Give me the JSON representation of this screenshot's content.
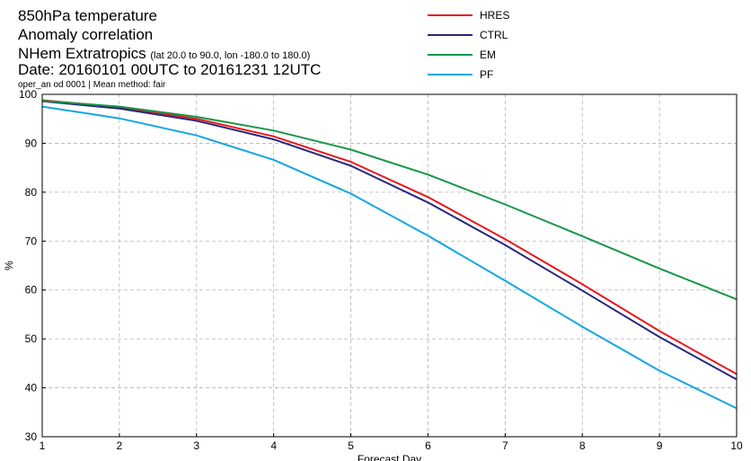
{
  "header": {
    "title_line1": "850hPa temperature",
    "title_line2": "Anomaly correlation",
    "title_line3_main": "NHem Extratropics",
    "title_line3_sub": "(lat  20.0 to 90.0, lon  -180.0 to  180.0)",
    "title_line4": "Date: 20160101 00UTC to 20161231 12UTC",
    "subtitle": "oper_an od 0001 | Mean method: fair"
  },
  "chart_data": {
    "type": "line",
    "xlabel": "Forecast Day",
    "ylabel": "%",
    "xlim": [
      1,
      10
    ],
    "ylim": [
      30,
      100
    ],
    "xticks": [
      1,
      2,
      3,
      4,
      5,
      6,
      7,
      8,
      9,
      10
    ],
    "yticks": [
      30,
      40,
      50,
      60,
      70,
      80,
      90,
      100
    ],
    "grid": true,
    "legend_position": "top-center",
    "x": [
      1,
      2,
      3,
      4,
      5,
      6,
      7,
      8,
      9,
      10
    ],
    "series": [
      {
        "name": "HRES",
        "color": "#e8191c",
        "values": [
          98.8,
          97.4,
          95.0,
          91.4,
          86.2,
          79.0,
          70.4,
          61.2,
          51.6,
          42.8
        ]
      },
      {
        "name": "CTRL",
        "color": "#27287a",
        "values": [
          98.6,
          97.1,
          94.6,
          90.8,
          85.4,
          77.9,
          69.2,
          59.9,
          50.4,
          41.7
        ]
      },
      {
        "name": "EM",
        "color": "#17964a",
        "values": [
          98.7,
          97.5,
          95.4,
          92.6,
          88.7,
          83.6,
          77.5,
          71.0,
          64.4,
          58.1
        ]
      },
      {
        "name": "PF",
        "color": "#12a6e0",
        "values": [
          97.5,
          95.1,
          91.6,
          86.6,
          79.7,
          71.1,
          61.9,
          52.5,
          43.5,
          35.8
        ]
      }
    ]
  }
}
